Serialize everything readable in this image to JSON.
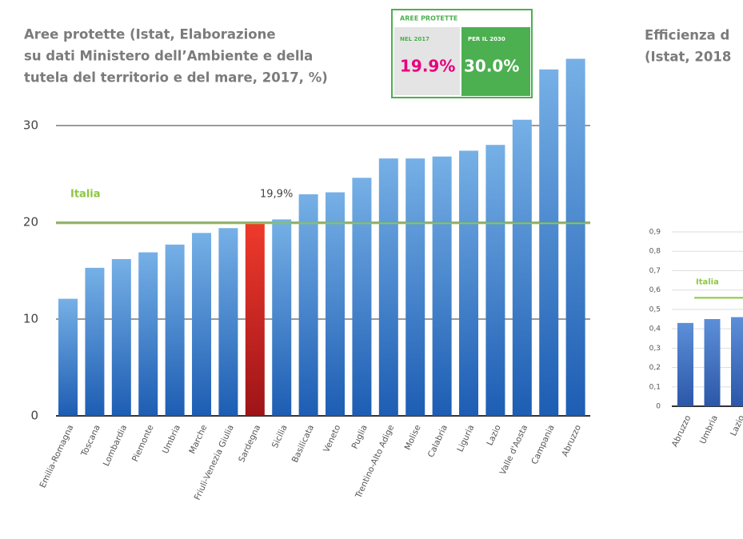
{
  "chart_data": [
    {
      "type": "bar",
      "title_lines": [
        "Aree protette  (Istat, Elaborazione",
        "su dati Ministero dell’Ambiente e della",
        "tutela del territorio e del mare, 2017, %)"
      ],
      "categories": [
        "Emilia-Romagna",
        "Toscana",
        "Lombardia",
        "Piemonte",
        "Umbria",
        "Marche",
        "Friuli-Venezia Giulia",
        "Sardegna",
        "Sicilia",
        "Basilicata",
        "Veneto",
        "Puglia",
        "Trentino-Alto Adige",
        "Molise",
        "Calabria",
        "Liguria",
        "Lazio",
        "Valle d'Aosta",
        "Campania",
        "Abruzzo"
      ],
      "values": [
        12.1,
        15.3,
        16.2,
        16.9,
        17.7,
        18.9,
        19.4,
        19.9,
        20.3,
        22.9,
        23.1,
        24.6,
        26.6,
        26.6,
        26.8,
        27.4,
        28.0,
        30.6,
        35.8,
        36.9
      ],
      "color": "#4a8ad6",
      "highlight": {
        "index": 7,
        "color": "#e0281f"
      },
      "ylim": [
        0,
        40
      ],
      "yticks": [
        0,
        10,
        20,
        30
      ],
      "grid": true,
      "reference": {
        "name": "Italia",
        "value": 19.9,
        "value_label": "19,9%",
        "color": "#8dc63f"
      },
      "inset": {
        "header": "AREE PROTETTE",
        "left_label": "NEL 2017",
        "left_value": "19.9%",
        "right_label": "PER IL 2030",
        "right_value": "30.0%"
      }
    },
    {
      "type": "bar",
      "title_lines": [
        "Efficienza d",
        "(Istat, 2018"
      ],
      "categories": [
        "Abruzzo",
        "Umbria",
        "Lazio"
      ],
      "values": [
        0.43,
        0.45,
        0.46
      ],
      "color": "#3f72c6",
      "ylim": [
        0,
        0.9
      ],
      "yticks": [
        0,
        {
          "value": 0.1,
          "label": "0,1"
        },
        {
          "value": 0.2,
          "label": "0,2"
        },
        {
          "value": 0.3,
          "label": "0,3"
        },
        {
          "value": 0.4,
          "label": "0,4"
        },
        {
          "value": 0.5,
          "label": "0,5"
        },
        {
          "value": 0.6,
          "label": "0,6"
        },
        {
          "value": 0.7,
          "label": "0,7"
        },
        {
          "value": 0.8,
          "label": "0,8"
        },
        {
          "value": 0.9,
          "label": "0,9"
        }
      ],
      "grid": true,
      "reference": {
        "name": "Italia",
        "value": 0.56,
        "color": "#8dc63f"
      }
    }
  ]
}
